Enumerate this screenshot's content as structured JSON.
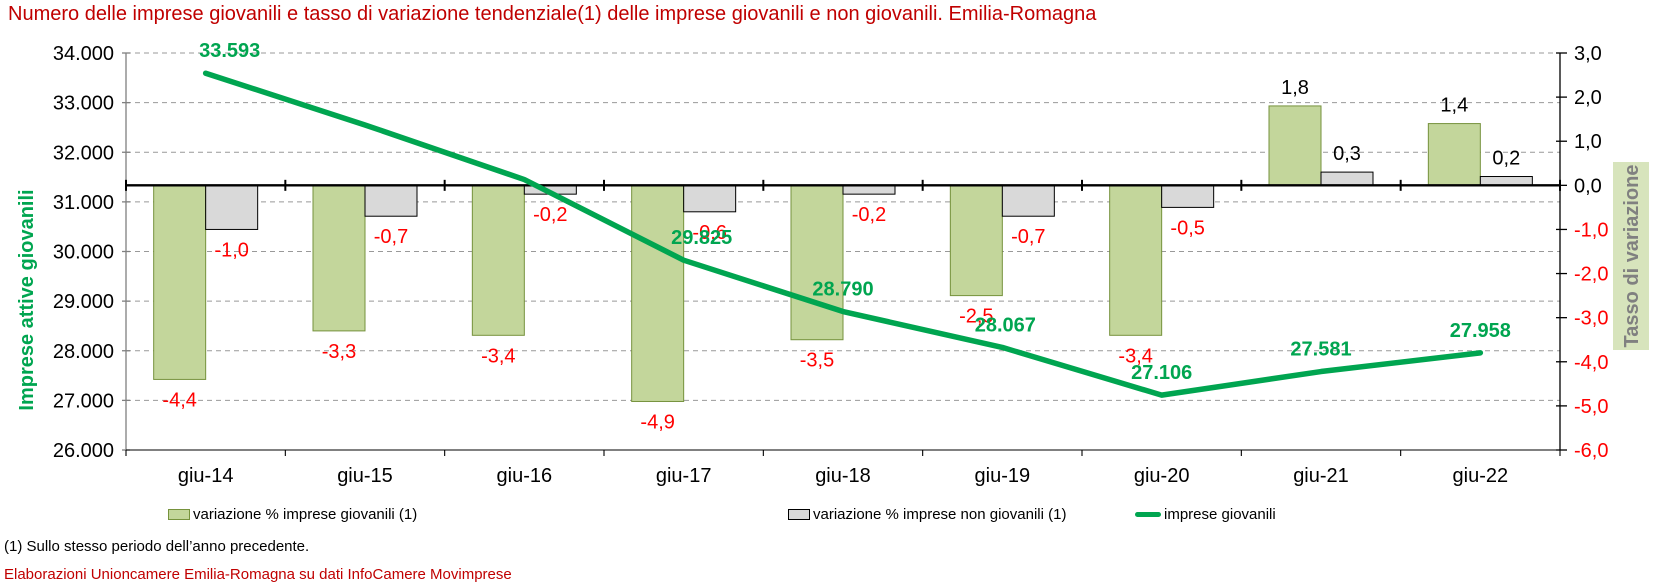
{
  "title": {
    "text": "Numero delle imprese giovanili e tasso di variazione tendenziale(1) delle imprese giovanili e non giovanili. Emilia-Romagna",
    "color": "#C00000"
  },
  "chart_data": {
    "type": "combo-bar-line",
    "categories": [
      "giu-14",
      "giu-15",
      "giu-16",
      "giu-17",
      "giu-18",
      "giu-19",
      "giu-20",
      "giu-21",
      "giu-22"
    ],
    "series": [
      {
        "name": "variazione % imprese giovanili (1)",
        "type": "bar",
        "axis": "right",
        "color": "#C3D69B",
        "border": "#76923C",
        "values": [
          -4.4,
          -3.3,
          -3.4,
          -4.9,
          -3.5,
          -2.5,
          -3.4,
          1.8,
          1.4
        ],
        "labels": [
          "-4,4",
          "-3,3",
          "-3,4",
          "-4,9",
          "-3,5",
          "-2,5",
          "-3,4",
          "1,8",
          "1,4"
        ]
      },
      {
        "name": "variazione % imprese non giovanili (1)",
        "type": "bar",
        "axis": "right",
        "color": "#D9D9D9",
        "border": "#000000",
        "values": [
          -1.0,
          -0.7,
          -0.2,
          -0.6,
          -0.2,
          -0.7,
          -0.5,
          0.3,
          0.2
        ],
        "labels": [
          "-1,0",
          "-0,7",
          "-0,2",
          "-0,6",
          "-0,2",
          "-0,7",
          "-0,5",
          "0,3",
          "0,2"
        ]
      },
      {
        "name": "imprese giovanili",
        "type": "line",
        "axis": "left",
        "color": "#00A550",
        "values": [
          33593,
          32550,
          31450,
          29825,
          28790,
          28067,
          27106,
          27581,
          27958
        ],
        "labels": [
          "33.593",
          "",
          "",
          "29.825",
          "28.790",
          "28.067",
          "27.106",
          "27.581",
          "27.958"
        ]
      }
    ],
    "left_axis": {
      "title": "Imprese attive giovanili",
      "title_color": "#00A550",
      "min": 26000,
      "max": 34000,
      "step": 1000,
      "tick_labels": [
        "34.000",
        "33.000",
        "32.000",
        "31.000",
        "30.000",
        "29.000",
        "28.000",
        "27.000",
        "26.000"
      ]
    },
    "right_axis": {
      "title": "Tasso di variazione",
      "title_color": "#808080",
      "title_bg": "#D7E4BC",
      "min": -6,
      "max": 3,
      "step": 1,
      "tick_labels": [
        "3,0",
        "2,0",
        "1,0",
        "0,0",
        "-1,0",
        "-2,0",
        "-3,0",
        "-4,0",
        "-5,0",
        "-6,0"
      ]
    },
    "style": {
      "negative_label_color": "#FF0000",
      "positive_label_color": "#000000",
      "gridline_color": "#999999",
      "grid": "horizontal-dashed",
      "legend_position": "bottom"
    }
  },
  "footnotes": [
    {
      "text": "(1) Sullo stesso periodo dell’anno precedente.",
      "color": "#000000"
    },
    {
      "text": "Elaborazioni Unioncamere Emilia-Romagna su dati InfoCamere Movimprese",
      "color": "#C00000"
    }
  ]
}
